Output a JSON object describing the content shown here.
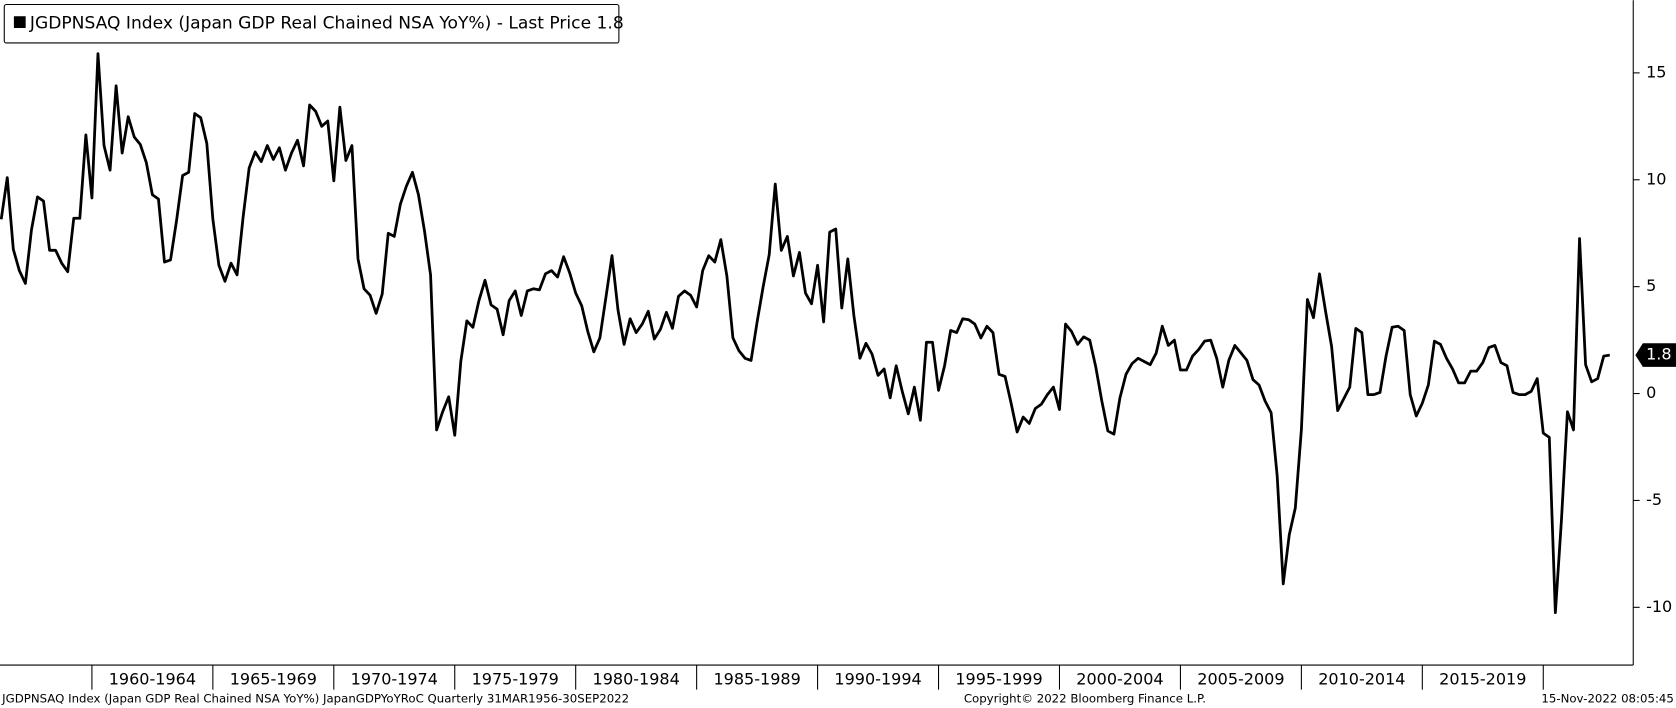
{
  "chart_data": {
    "type": "line",
    "legend_title": "JGDPNSAQ Index (Japan GDP Real Chained NSA YoY%)",
    "legend_suffix": "- Last Price",
    "last_price": 1.8,
    "footer_left": "JGDPNSAQ Index (Japan GDP Real Chained NSA YoY%) JapanGDPYoYRoC  Quarterly 31MAR1956-30SEP2022",
    "footer_center": "Copyright© 2022 Bloomberg Finance L.P.",
    "footer_right": "15-Nov-2022 08:05:45",
    "xlim": [
      1956.2,
      2023.72
    ],
    "xticks": [
      1960,
      1965,
      1970,
      1975,
      1980,
      1985,
      1990,
      1995,
      2000,
      2005,
      2010,
      2015,
      2020
    ],
    "xtick_labels": [
      {
        "value": 1962.5,
        "label": "1960-1964"
      },
      {
        "value": 1967.5,
        "label": "1965-1969"
      },
      {
        "value": 1972.5,
        "label": "1970-1974"
      },
      {
        "value": 1977.5,
        "label": "1975-1979"
      },
      {
        "value": 1982.5,
        "label": "1980-1984"
      },
      {
        "value": 1987.5,
        "label": "1985-1989"
      },
      {
        "value": 1992.5,
        "label": "1990-1994"
      },
      {
        "value": 1997.5,
        "label": "1995-1999"
      },
      {
        "value": 2002.5,
        "label": "2000-2004"
      },
      {
        "value": 2007.5,
        "label": "2005-2009"
      },
      {
        "value": 2012.5,
        "label": "2010-2014"
      },
      {
        "value": 2017.5,
        "label": "2015-2019"
      }
    ],
    "ylim": [
      -12.7,
      18.4
    ],
    "yticks": [
      -10,
      -5,
      0,
      5,
      10,
      15
    ],
    "series": [
      {
        "name": "JGDPNSAQ Index (Japan GDP Real Chained NSA YoY%)",
        "color": "#000000",
        "x": [
          1956.25,
          1956.5,
          1956.75,
          1957,
          1957.25,
          1957.5,
          1957.75,
          1958,
          1958.25,
          1958.5,
          1958.75,
          1959,
          1959.25,
          1959.5,
          1959.75,
          1960,
          1960.25,
          1960.5,
          1960.75,
          1961,
          1961.25,
          1961.5,
          1961.75,
          1962,
          1962.25,
          1962.5,
          1962.75,
          1963,
          1963.25,
          1963.5,
          1963.75,
          1964,
          1964.25,
          1964.5,
          1964.75,
          1965,
          1965.25,
          1965.5,
          1965.75,
          1966,
          1966.25,
          1966.5,
          1966.75,
          1967,
          1967.25,
          1967.5,
          1967.75,
          1968,
          1968.25,
          1968.5,
          1968.75,
          1969,
          1969.25,
          1969.5,
          1969.75,
          1970,
          1970.25,
          1970.5,
          1970.75,
          1971,
          1971.25,
          1971.5,
          1971.75,
          1972,
          1972.25,
          1972.5,
          1972.75,
          1973,
          1973.25,
          1973.5,
          1973.75,
          1974,
          1974.25,
          1974.5,
          1974.75,
          1975,
          1975.25,
          1975.5,
          1975.75,
          1976,
          1976.25,
          1976.5,
          1976.75,
          1977,
          1977.25,
          1977.5,
          1977.75,
          1978,
          1978.25,
          1978.5,
          1978.75,
          1979,
          1979.25,
          1979.5,
          1979.75,
          1980,
          1980.25,
          1980.5,
          1980.75,
          1981,
          1981.25,
          1981.5,
          1981.75,
          1982,
          1982.25,
          1982.5,
          1982.75,
          1983,
          1983.25,
          1983.5,
          1983.75,
          1984,
          1984.25,
          1984.5,
          1984.75,
          1985,
          1985.25,
          1985.5,
          1985.75,
          1986,
          1986.25,
          1986.5,
          1986.75,
          1987,
          1987.25,
          1987.5,
          1987.75,
          1988,
          1988.25,
          1988.5,
          1988.75,
          1989,
          1989.25,
          1989.5,
          1989.75,
          1990,
          1990.25,
          1990.5,
          1990.75,
          1991,
          1991.25,
          1991.5,
          1991.75,
          1992,
          1992.25,
          1992.5,
          1992.75,
          1993,
          1993.25,
          1993.5,
          1993.75,
          1994,
          1994.25,
          1994.5,
          1994.75,
          1995,
          1995.25,
          1995.5,
          1995.75,
          1996,
          1996.25,
          1996.5,
          1996.75,
          1997,
          1997.25,
          1997.5,
          1997.75,
          1998,
          1998.25,
          1998.5,
          1998.75,
          1999,
          1999.25,
          1999.5,
          1999.75,
          2000,
          2000.25,
          2000.5,
          2000.75,
          2001,
          2001.25,
          2001.5,
          2001.75,
          2002,
          2002.25,
          2002.5,
          2002.75,
          2003,
          2003.25,
          2003.5,
          2003.75,
          2004,
          2004.25,
          2004.5,
          2004.75,
          2005,
          2005.25,
          2005.5,
          2005.75,
          2006,
          2006.25,
          2006.5,
          2006.75,
          2007,
          2007.25,
          2007.5,
          2007.75,
          2008,
          2008.25,
          2008.5,
          2008.75,
          2009,
          2009.25,
          2009.5,
          2009.75,
          2010,
          2010.25,
          2010.5,
          2010.75,
          2011,
          2011.25,
          2011.5,
          2011.75,
          2012,
          2012.25,
          2012.5,
          2012.75,
          2013,
          2013.25,
          2013.5,
          2013.75,
          2014,
          2014.25,
          2014.5,
          2014.75,
          2015,
          2015.25,
          2015.5,
          2015.75,
          2016,
          2016.25,
          2016.5,
          2016.75,
          2017,
          2017.25,
          2017.5,
          2017.75,
          2018,
          2018.25,
          2018.5,
          2018.75,
          2019,
          2019.25,
          2019.5,
          2019.75,
          2020,
          2020.25,
          2020.5,
          2020.75,
          2021,
          2021.25,
          2021.5,
          2021.75,
          2022,
          2022.25,
          2022.5,
          2022.75
        ],
        "values": [
          8.15,
          10.1,
          6.75,
          5.75,
          5.15,
          7.65,
          9.2,
          9.0,
          6.7,
          6.7,
          6.1,
          5.7,
          8.2,
          8.2,
          12.1,
          9.15,
          15.9,
          11.6,
          10.45,
          14.4,
          11.25,
          12.95,
          12.0,
          11.65,
          10.8,
          9.3,
          9.1,
          6.15,
          6.25,
          8.1,
          10.2,
          10.35,
          13.1,
          12.9,
          11.7,
          8.15,
          6.0,
          5.25,
          6.1,
          5.55,
          8.25,
          10.55,
          11.3,
          10.85,
          11.6,
          10.95,
          11.5,
          10.45,
          11.25,
          11.85,
          10.65,
          13.5,
          13.2,
          12.5,
          12.75,
          9.95,
          13.4,
          10.9,
          11.6,
          6.3,
          4.9,
          4.6,
          3.75,
          4.65,
          7.5,
          7.35,
          8.85,
          9.7,
          10.35,
          9.3,
          7.6,
          5.55,
          -1.7,
          -0.85,
          -0.15,
          -1.95,
          1.5,
          3.4,
          3.1,
          4.35,
          5.3,
          4.15,
          3.95,
          2.75,
          4.35,
          4.8,
          3.65,
          4.8,
          4.9,
          4.85,
          5.6,
          5.75,
          5.45,
          6.4,
          5.65,
          4.7,
          4.1,
          2.9,
          1.95,
          2.6,
          4.5,
          6.45,
          3.9,
          2.3,
          3.5,
          2.85,
          3.25,
          3.85,
          2.55,
          3.0,
          3.8,
          3.05,
          4.55,
          4.8,
          4.6,
          4.05,
          5.75,
          6.45,
          6.15,
          7.2,
          5.5,
          2.6,
          2.0,
          1.65,
          1.55,
          3.35,
          5.0,
          6.5,
          9.8,
          6.7,
          7.35,
          5.5,
          6.6,
          4.7,
          4.2,
          6.0,
          3.35,
          7.55,
          7.7,
          4.0,
          6.3,
          3.65,
          1.65,
          2.35,
          1.85,
          0.85,
          1.15,
          -0.2,
          1.3,
          0.1,
          -0.95,
          0.3,
          -1.25,
          2.4,
          2.4,
          0.15,
          1.3,
          2.95,
          2.85,
          3.5,
          3.45,
          3.25,
          2.6,
          3.15,
          2.85,
          0.9,
          0.8,
          -0.45,
          -1.8,
          -1.1,
          -1.4,
          -0.7,
          -0.5,
          -0.05,
          0.3,
          -0.75,
          3.25,
          2.9,
          2.3,
          2.65,
          2.5,
          1.25,
          -0.35,
          -1.75,
          -1.9,
          -0.2,
          0.9,
          1.4,
          1.65,
          1.5,
          1.35,
          1.9,
          3.15,
          2.25,
          2.5,
          1.1,
          1.1,
          1.75,
          2.05,
          2.45,
          2.5,
          1.65,
          0.3,
          1.55,
          2.25,
          1.9,
          1.55,
          0.65,
          0.4,
          -0.35,
          -0.9,
          -3.85,
          -8.9,
          -6.6,
          -5.35,
          -1.7,
          4.4,
          3.55,
          5.6,
          3.85,
          2.2,
          -0.8,
          -0.25,
          0.3,
          3.05,
          2.85,
          -0.05,
          -0.05,
          0.05,
          1.75,
          3.1,
          3.15,
          2.95,
          -0.05,
          -1.05,
          -0.45,
          0.4,
          2.45,
          2.3,
          1.65,
          1.15,
          0.5,
          0.5,
          1.05,
          1.05,
          1.45,
          2.15,
          2.25,
          1.45,
          1.3,
          0.05,
          -0.05,
          -0.05,
          0.1,
          0.7,
          -1.85,
          -2.05,
          -10.25,
          -5.95,
          -0.85,
          -1.7,
          7.25,
          1.35,
          0.55,
          0.7,
          1.75,
          1.8
        ]
      }
    ]
  }
}
